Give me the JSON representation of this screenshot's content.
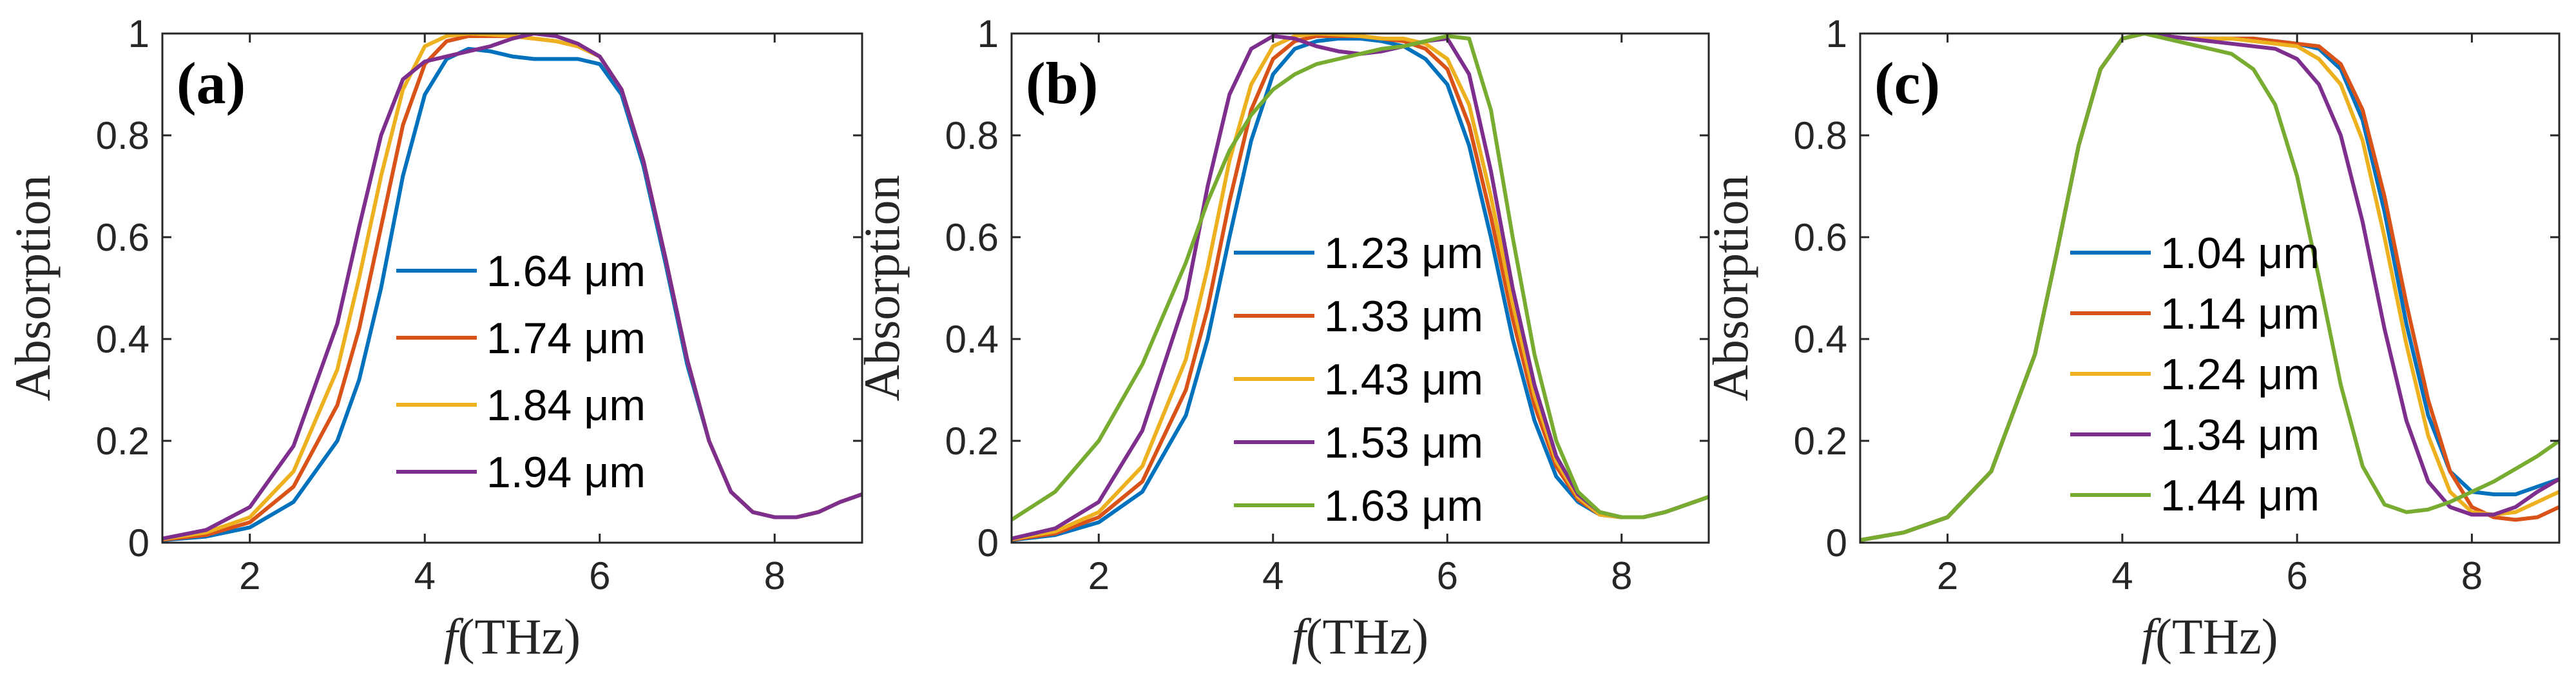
{
  "colors": [
    "#0072BD",
    "#D95319",
    "#EDB120",
    "#7E2F8E",
    "#77AC30"
  ],
  "chart_data": [
    {
      "type": "line",
      "panel": "(a)",
      "xlabel_var": "f",
      "xlabel_unit": "(THz)",
      "ylabel": "Absorption",
      "xlim": [
        1,
        9
      ],
      "ylim": [
        0,
        1
      ],
      "xticks": [
        2,
        4,
        6,
        8
      ],
      "xtick_labels": [
        "2",
        "4",
        "6",
        "8"
      ],
      "yticks": [
        0,
        0.2,
        0.4,
        0.6,
        0.8,
        1
      ],
      "ytick_labels": [
        "0",
        "0.2",
        "0.4",
        "0.6",
        "0.8",
        "1"
      ],
      "legend_position": "center",
      "series": [
        {
          "name": "1.64 μm",
          "x": [
            1,
            1.5,
            2,
            2.5,
            3,
            3.25,
            3.5,
            3.75,
            4,
            4.25,
            4.5,
            4.75,
            5,
            5.25,
            5.5,
            5.75,
            6,
            6.25,
            6.5,
            6.75,
            7,
            7.25,
            7.5,
            7.75,
            8,
            8.25,
            8.5,
            8.75,
            9
          ],
          "y": [
            0.005,
            0.012,
            0.03,
            0.08,
            0.2,
            0.32,
            0.5,
            0.72,
            0.88,
            0.95,
            0.97,
            0.965,
            0.955,
            0.95,
            0.95,
            0.95,
            0.94,
            0.88,
            0.74,
            0.55,
            0.35,
            0.2,
            0.1,
            0.06,
            0.05,
            0.05,
            0.06,
            0.08,
            0.095
          ]
        },
        {
          "name": "1.74 μm",
          "x": [
            1,
            1.5,
            2,
            2.5,
            3,
            3.25,
            3.5,
            3.75,
            4,
            4.25,
            4.5,
            4.75,
            5,
            5.25,
            5.5,
            5.75,
            6,
            6.25,
            6.5,
            6.75,
            7,
            7.25,
            7.5,
            7.75,
            8,
            8.25,
            8.5,
            8.75,
            9
          ],
          "y": [
            0.006,
            0.015,
            0.04,
            0.11,
            0.27,
            0.42,
            0.62,
            0.82,
            0.94,
            0.985,
            0.995,
            0.995,
            0.995,
            0.99,
            0.985,
            0.975,
            0.955,
            0.89,
            0.75,
            0.56,
            0.36,
            0.2,
            0.1,
            0.06,
            0.05,
            0.05,
            0.06,
            0.08,
            0.095
          ]
        },
        {
          "name": "1.84 μm",
          "x": [
            1,
            1.5,
            2,
            2.5,
            3,
            3.25,
            3.5,
            3.75,
            4,
            4.25,
            4.5,
            4.75,
            5,
            5.25,
            5.5,
            5.75,
            6,
            6.25,
            6.5,
            6.75,
            7,
            7.25,
            7.5,
            7.75,
            8,
            8.25,
            8.5,
            8.75,
            9
          ],
          "y": [
            0.007,
            0.02,
            0.05,
            0.14,
            0.34,
            0.52,
            0.72,
            0.89,
            0.975,
            0.995,
            1.0,
            0.998,
            0.995,
            0.99,
            0.985,
            0.975,
            0.955,
            0.89,
            0.75,
            0.56,
            0.36,
            0.2,
            0.1,
            0.06,
            0.05,
            0.05,
            0.06,
            0.08,
            0.095
          ]
        },
        {
          "name": "1.94 μm",
          "x": [
            1,
            1.5,
            2,
            2.5,
            3,
            3.25,
            3.5,
            3.75,
            4,
            4.25,
            4.5,
            4.75,
            5,
            5.25,
            5.5,
            5.75,
            6,
            6.25,
            6.5,
            6.75,
            7,
            7.25,
            7.5,
            7.75,
            8,
            8.25,
            8.5,
            8.75,
            9
          ],
          "y": [
            0.008,
            0.025,
            0.07,
            0.19,
            0.43,
            0.62,
            0.8,
            0.91,
            0.945,
            0.955,
            0.965,
            0.975,
            0.99,
            1.0,
            0.995,
            0.98,
            0.955,
            0.89,
            0.75,
            0.56,
            0.36,
            0.2,
            0.1,
            0.06,
            0.05,
            0.05,
            0.06,
            0.08,
            0.095
          ]
        }
      ]
    },
    {
      "type": "line",
      "panel": "(b)",
      "xlabel_var": "f",
      "xlabel_unit": "(THz)",
      "ylabel": "Absorption",
      "xlim": [
        1,
        9
      ],
      "ylim": [
        0,
        1
      ],
      "xticks": [
        2,
        4,
        6,
        8
      ],
      "xtick_labels": [
        "2",
        "4",
        "6",
        "8"
      ],
      "yticks": [
        0,
        0.2,
        0.4,
        0.6,
        0.8,
        1
      ],
      "ytick_labels": [
        "0",
        "0.2",
        "0.4",
        "0.6",
        "0.8",
        "1"
      ],
      "legend_position": "center",
      "series": [
        {
          "name": "1.23 μm",
          "x": [
            1,
            1.5,
            2,
            2.5,
            3,
            3.25,
            3.5,
            3.75,
            4,
            4.25,
            4.5,
            4.75,
            5,
            5.25,
            5.5,
            5.75,
            6,
            6.25,
            6.5,
            6.75,
            7,
            7.25,
            7.5,
            7.75,
            8,
            8.25,
            8.5,
            8.75,
            9
          ],
          "y": [
            0.005,
            0.015,
            0.04,
            0.1,
            0.25,
            0.4,
            0.6,
            0.79,
            0.92,
            0.97,
            0.985,
            0.99,
            0.99,
            0.985,
            0.975,
            0.95,
            0.9,
            0.78,
            0.6,
            0.4,
            0.24,
            0.13,
            0.08,
            0.055,
            0.05,
            0.05,
            0.06,
            0.075,
            0.09
          ]
        },
        {
          "name": "1.33 μm",
          "x": [
            1,
            1.5,
            2,
            2.5,
            3,
            3.25,
            3.5,
            3.75,
            4,
            4.25,
            4.5,
            4.75,
            5,
            5.25,
            5.5,
            5.75,
            6,
            6.25,
            6.5,
            6.75,
            7,
            7.25,
            7.5,
            7.75,
            8,
            8.25,
            8.5,
            8.75,
            9
          ],
          "y": [
            0.006,
            0.018,
            0.05,
            0.12,
            0.3,
            0.46,
            0.67,
            0.85,
            0.95,
            0.985,
            0.995,
            0.995,
            0.995,
            0.99,
            0.985,
            0.97,
            0.93,
            0.82,
            0.64,
            0.44,
            0.27,
            0.15,
            0.085,
            0.055,
            0.05,
            0.05,
            0.06,
            0.075,
            0.09
          ]
        },
        {
          "name": "1.43 μm",
          "x": [
            1,
            1.5,
            2,
            2.5,
            3,
            3.25,
            3.5,
            3.75,
            4,
            4.25,
            4.5,
            4.75,
            5,
            5.25,
            5.5,
            5.75,
            6,
            6.25,
            6.5,
            6.75,
            7,
            7.25,
            7.5,
            7.75,
            8,
            8.25,
            8.5,
            8.75,
            9
          ],
          "y": [
            0.007,
            0.022,
            0.06,
            0.15,
            0.36,
            0.54,
            0.75,
            0.9,
            0.975,
            0.995,
            1.0,
            0.998,
            0.995,
            0.99,
            0.99,
            0.98,
            0.95,
            0.86,
            0.68,
            0.47,
            0.29,
            0.16,
            0.09,
            0.055,
            0.05,
            0.05,
            0.06,
            0.075,
            0.09
          ]
        },
        {
          "name": "1.53 μm",
          "x": [
            1,
            1.5,
            2,
            2.5,
            3,
            3.25,
            3.5,
            3.75,
            4,
            4.25,
            4.5,
            4.75,
            5,
            5.25,
            5.5,
            5.75,
            6,
            6.25,
            6.5,
            6.75,
            7,
            7.25,
            7.5,
            7.75,
            8,
            8.25,
            8.5,
            8.75,
            9
          ],
          "y": [
            0.008,
            0.028,
            0.08,
            0.22,
            0.48,
            0.7,
            0.88,
            0.97,
            0.995,
            0.99,
            0.975,
            0.965,
            0.96,
            0.965,
            0.975,
            0.985,
            0.99,
            0.92,
            0.73,
            0.5,
            0.31,
            0.17,
            0.095,
            0.06,
            0.05,
            0.05,
            0.06,
            0.075,
            0.09
          ]
        },
        {
          "name": "1.63 μm",
          "x": [
            1,
            1.5,
            2,
            2.5,
            3,
            3.25,
            3.5,
            3.75,
            4,
            4.25,
            4.5,
            4.75,
            5,
            5.25,
            5.5,
            5.75,
            6,
            6.25,
            6.5,
            6.75,
            7,
            7.25,
            7.5,
            7.75,
            8,
            8.25,
            8.5,
            8.75,
            9
          ],
          "y": [
            0.045,
            0.1,
            0.2,
            0.35,
            0.55,
            0.67,
            0.77,
            0.84,
            0.89,
            0.92,
            0.94,
            0.95,
            0.96,
            0.97,
            0.975,
            0.985,
            0.995,
            0.99,
            0.85,
            0.6,
            0.37,
            0.2,
            0.1,
            0.06,
            0.05,
            0.05,
            0.06,
            0.075,
            0.09
          ]
        }
      ]
    },
    {
      "type": "line",
      "panel": "(c)",
      "xlabel_var": "f",
      "xlabel_unit": "(THz)",
      "ylabel": "Absorption",
      "xlim": [
        1,
        9
      ],
      "ylim": [
        0,
        1
      ],
      "xticks": [
        2,
        4,
        6,
        8
      ],
      "xtick_labels": [
        "2",
        "4",
        "6",
        "8"
      ],
      "yticks": [
        0,
        0.2,
        0.4,
        0.6,
        0.8,
        1
      ],
      "ytick_labels": [
        "0",
        "0.2",
        "0.4",
        "0.6",
        "0.8",
        "1"
      ],
      "legend_position": "center",
      "series": [
        {
          "name": "1.04 μm",
          "x": [
            1,
            1.5,
            2,
            2.5,
            3,
            3.25,
            3.5,
            3.75,
            4,
            4.25,
            4.5,
            4.75,
            5,
            5.25,
            5.5,
            5.75,
            6,
            6.25,
            6.5,
            6.75,
            7,
            7.25,
            7.5,
            7.75,
            8,
            8.25,
            8.5,
            8.75,
            9
          ],
          "y": [
            0.005,
            0.02,
            0.05,
            0.14,
            0.37,
            0.57,
            0.78,
            0.93,
            0.99,
            1.0,
            0.995,
            0.99,
            0.99,
            0.99,
            0.99,
            0.985,
            0.98,
            0.97,
            0.93,
            0.83,
            0.65,
            0.43,
            0.25,
            0.14,
            0.1,
            0.095,
            0.095,
            0.11,
            0.125
          ]
        },
        {
          "name": "1.14 μm",
          "x": [
            1,
            1.5,
            2,
            2.5,
            3,
            3.25,
            3.5,
            3.75,
            4,
            4.25,
            4.5,
            4.75,
            5,
            5.25,
            5.5,
            5.75,
            6,
            6.25,
            6.5,
            6.75,
            7,
            7.25,
            7.5,
            7.75,
            8,
            8.25,
            8.5,
            8.75,
            9
          ],
          "y": [
            0.005,
            0.02,
            0.05,
            0.14,
            0.37,
            0.57,
            0.78,
            0.93,
            0.99,
            1.0,
            0.995,
            0.99,
            0.99,
            0.99,
            0.99,
            0.985,
            0.98,
            0.975,
            0.94,
            0.85,
            0.68,
            0.47,
            0.28,
            0.14,
            0.07,
            0.05,
            0.045,
            0.05,
            0.07
          ]
        },
        {
          "name": "1.24 μm",
          "x": [
            1,
            1.5,
            2,
            2.5,
            3,
            3.25,
            3.5,
            3.75,
            4,
            4.25,
            4.5,
            4.75,
            5,
            5.25,
            5.5,
            5.75,
            6,
            6.25,
            6.5,
            6.75,
            7,
            7.25,
            7.5,
            7.75,
            8,
            8.25,
            8.5,
            8.75,
            9
          ],
          "y": [
            0.005,
            0.02,
            0.05,
            0.14,
            0.37,
            0.57,
            0.78,
            0.93,
            0.99,
            1.0,
            0.995,
            0.99,
            0.99,
            0.99,
            0.985,
            0.98,
            0.975,
            0.95,
            0.9,
            0.79,
            0.6,
            0.39,
            0.21,
            0.1,
            0.06,
            0.055,
            0.06,
            0.08,
            0.1
          ]
        },
        {
          "name": "1.34 μm",
          "x": [
            1,
            1.5,
            2,
            2.5,
            3,
            3.25,
            3.5,
            3.75,
            4,
            4.25,
            4.5,
            4.75,
            5,
            5.25,
            5.5,
            5.75,
            6,
            6.25,
            6.5,
            6.75,
            7,
            7.25,
            7.5,
            7.75,
            8,
            8.25,
            8.5,
            8.75,
            9
          ],
          "y": [
            0.005,
            0.02,
            0.05,
            0.14,
            0.37,
            0.57,
            0.78,
            0.93,
            0.99,
            1.0,
            0.995,
            0.99,
            0.985,
            0.98,
            0.975,
            0.97,
            0.95,
            0.9,
            0.8,
            0.63,
            0.42,
            0.24,
            0.12,
            0.07,
            0.055,
            0.055,
            0.07,
            0.1,
            0.125
          ]
        },
        {
          "name": "1.44 μm",
          "x": [
            1,
            1.5,
            2,
            2.5,
            3,
            3.25,
            3.5,
            3.75,
            4,
            4.25,
            4.5,
            4.75,
            5,
            5.25,
            5.5,
            5.75,
            6,
            6.25,
            6.5,
            6.75,
            7,
            7.25,
            7.5,
            7.75,
            8,
            8.25,
            8.5,
            8.75,
            9
          ],
          "y": [
            0.005,
            0.02,
            0.05,
            0.14,
            0.37,
            0.57,
            0.78,
            0.93,
            0.99,
            1.0,
            0.99,
            0.98,
            0.97,
            0.96,
            0.93,
            0.86,
            0.72,
            0.52,
            0.31,
            0.15,
            0.075,
            0.06,
            0.065,
            0.08,
            0.1,
            0.12,
            0.145,
            0.17,
            0.2
          ]
        }
      ]
    }
  ]
}
